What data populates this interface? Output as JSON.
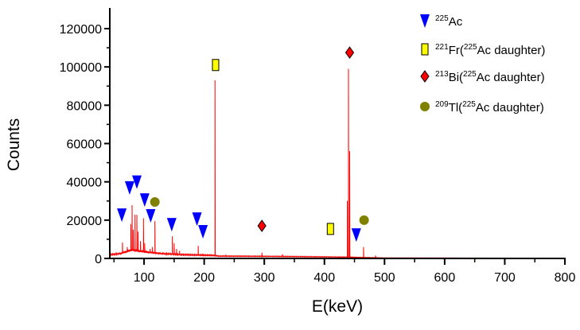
{
  "chart_data": {
    "type": "line",
    "title": "",
    "xlabel": "E(keV)",
    "ylabel": "Counts",
    "xlim": [
      43,
      800
    ],
    "ylim": [
      0,
      120000
    ],
    "xticks": [
      100,
      200,
      300,
      400,
      500,
      600,
      700,
      800
    ],
    "yticks": [
      0,
      20000,
      40000,
      60000,
      80000,
      100000,
      120000
    ],
    "grid": false,
    "legend_position": "top-right",
    "line_color": "#ff0000",
    "background": [
      [
        43,
        2000
      ],
      [
        60,
        2500
      ],
      [
        80,
        4500
      ],
      [
        100,
        3500
      ],
      [
        130,
        2500
      ],
      [
        160,
        2000
      ],
      [
        215,
        1600
      ],
      [
        225,
        1200
      ],
      [
        300,
        1100
      ],
      [
        380,
        900
      ],
      [
        440,
        700
      ],
      [
        470,
        500
      ],
      [
        500,
        300
      ],
      [
        800,
        150
      ]
    ],
    "peaks": [
      [
        64,
        8300
      ],
      [
        72,
        6000
      ],
      [
        78,
        18000
      ],
      [
        80,
        27800
      ],
      [
        82,
        15000
      ],
      [
        85,
        22800
      ],
      [
        88,
        22800
      ],
      [
        90,
        14000
      ],
      [
        94,
        9000
      ],
      [
        99,
        21000
      ],
      [
        101,
        8000
      ],
      [
        110,
        5000
      ],
      [
        114,
        6000
      ],
      [
        118,
        19500
      ],
      [
        147,
        11600
      ],
      [
        150,
        8000
      ],
      [
        154,
        5000
      ],
      [
        159,
        4000
      ],
      [
        190,
        6600
      ],
      [
        198,
        2000
      ],
      [
        218,
        93000
      ],
      [
        236,
        2000
      ],
      [
        296,
        3000
      ],
      [
        330,
        2200
      ],
      [
        438,
        30000
      ],
      [
        440,
        99000
      ],
      [
        442,
        56000
      ],
      [
        465,
        6000
      ],
      [
        485,
        1500
      ]
    ],
    "legend": [
      {
        "isotope_mass": "225",
        "text": "Ac",
        "marker": "down-triangle",
        "color": "#0000ff"
      },
      {
        "isotope_mass": "221",
        "text": "Fr(",
        "daughter_mass": "225",
        "tail": "Ac daughter)",
        "marker": "square",
        "color": "#ffff00"
      },
      {
        "isotope_mass": "213",
        "text": "Bi(",
        "daughter_mass": "225",
        "tail": "Ac daughter)",
        "marker": "diamond",
        "color": "#ff0000"
      },
      {
        "isotope_mass": "209",
        "text": "Tl(",
        "daughter_mass": "225",
        "tail": "Ac daughter)",
        "marker": "circle",
        "color": "#808000"
      }
    ],
    "markers": [
      {
        "series": 0,
        "points": [
          [
            63,
            22800
          ],
          [
            76,
            37000
          ],
          [
            88,
            40000
          ],
          [
            101,
            30700
          ],
          [
            111,
            22400
          ],
          [
            146,
            17800
          ],
          [
            188,
            20700
          ],
          [
            198,
            14100
          ],
          [
            453,
            12400
          ]
        ]
      },
      {
        "series": 1,
        "points": [
          [
            219,
            101000
          ],
          [
            410,
            15400
          ]
        ]
      },
      {
        "series": 2,
        "points": [
          [
            296,
            17000
          ],
          [
            442,
            107500
          ]
        ]
      },
      {
        "series": 3,
        "points": [
          [
            118,
            29500
          ],
          [
            466,
            20000
          ]
        ]
      }
    ]
  }
}
